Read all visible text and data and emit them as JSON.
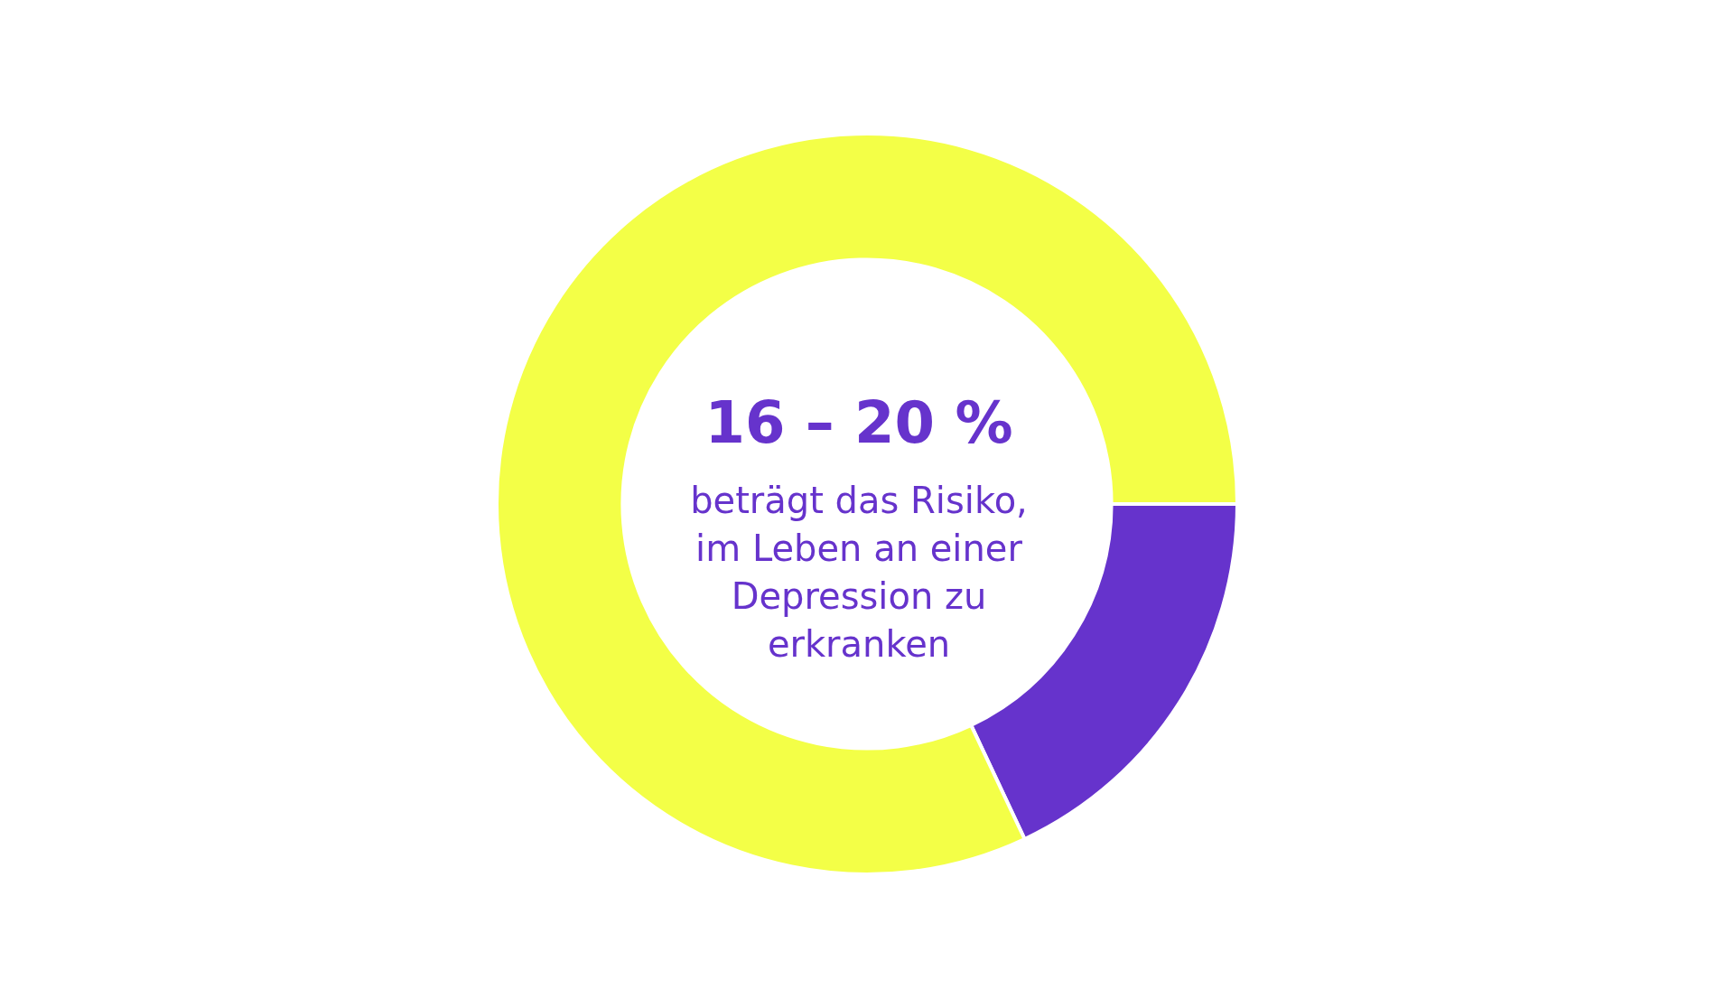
{
  "chart_data": {
    "type": "donut",
    "title": "16 – 20 %",
    "subtitle": "beträgt das Risiko, im Leben an einer Depression zu erkranken",
    "categories": [
      null,
      null
    ],
    "values": [
      18,
      82
    ],
    "colors": [
      "#6633cc",
      "#f3ff47"
    ]
  }
}
